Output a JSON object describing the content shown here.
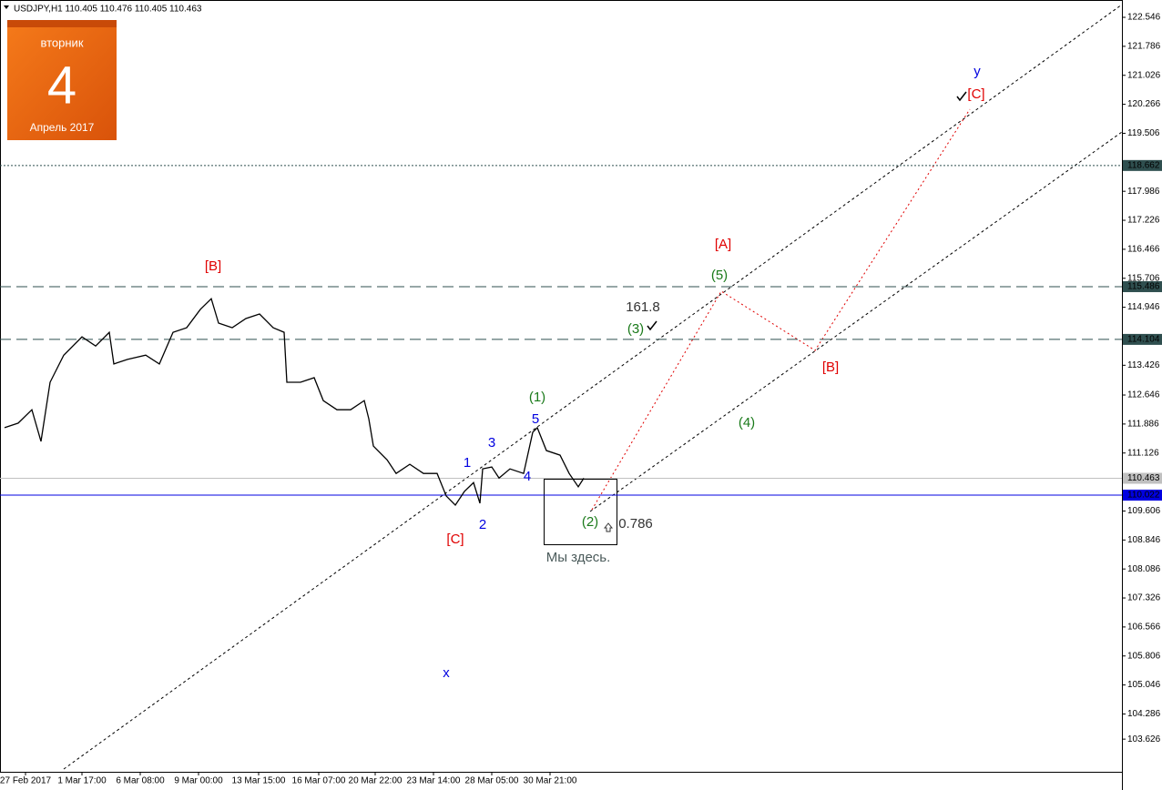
{
  "chart_data": {
    "type": "line",
    "title": "USDJPY,H1  110.405 110.476 110.405 110.463",
    "calendar": {
      "weekday": "вторник",
      "day": "4",
      "month": "Апрель 2017"
    },
    "x": [
      2.5,
      10,
      17.5,
      22.5,
      27.5,
      35,
      45,
      52.5,
      60,
      62.5,
      70,
      80,
      87.5,
      95,
      102.5,
      110,
      116,
      120,
      127.5,
      135,
      142.5,
      150,
      156,
      157.5,
      165,
      172.5,
      177.5,
      185,
      192.5,
      200,
      202.5,
      205,
      212.5,
      217.5,
      225,
      232.5,
      240,
      245,
      250,
      255,
      260,
      263.5,
      265,
      270,
      274,
      280,
      287.5,
      292.5,
      295,
      300,
      307.5,
      312.5,
      317.5,
      320.5
    ],
    "series": [
      {
        "name": "USDJPY",
        "color": "#000000",
        "values": [
          111.79,
          111.91,
          112.26,
          111.43,
          112.98,
          113.69,
          114.17,
          113.93,
          114.29,
          113.46,
          113.58,
          113.69,
          113.46,
          114.29,
          114.41,
          114.89,
          115.17,
          114.53,
          114.41,
          114.65,
          114.77,
          114.41,
          114.29,
          112.98,
          112.98,
          113.1,
          112.5,
          112.26,
          112.26,
          112.5,
          112.02,
          111.31,
          110.95,
          110.59,
          110.83,
          110.59,
          110.59,
          110.0,
          109.76,
          110.12,
          110.35,
          109.81,
          110.71,
          110.76,
          110.47,
          110.71,
          110.59,
          111.67,
          111.79,
          111.19,
          111.07,
          110.59,
          110.24,
          110.463
        ]
      }
    ],
    "xlim": [
      0,
      616
    ],
    "xticks": [
      {
        "value": 14,
        "label": "27 Feb 2017"
      },
      {
        "value": 45,
        "label": "1 Mar 17:00"
      },
      {
        "value": 77,
        "label": "6 Mar 08:00"
      },
      {
        "value": 109,
        "label": "9 Mar 00:00"
      },
      {
        "value": 142,
        "label": "13 Mar 15:00"
      },
      {
        "value": 175,
        "label": "16 Mar 07:00"
      },
      {
        "value": 206,
        "label": "20 Mar 22:00"
      },
      {
        "value": 238,
        "label": "23 Mar 14:00"
      },
      {
        "value": 270,
        "label": "28 Mar 05:00"
      },
      {
        "value": 302,
        "label": "30 Mar 21:00"
      }
    ],
    "ylim": [
      102.77,
      123.0
    ],
    "yticks": [
      122.546,
      121.786,
      121.026,
      120.266,
      119.506,
      117.986,
      117.226,
      116.466,
      115.706,
      114.946,
      113.426,
      112.646,
      111.886,
      111.126,
      109.606,
      108.846,
      108.086,
      107.326,
      106.566,
      105.806,
      105.046,
      104.286,
      103.626
    ],
    "levels": [
      {
        "value": 118.662,
        "color": "#2f4f4f",
        "style": "dotted"
      },
      {
        "value": 115.486,
        "color": "#2f4f4f",
        "style": "dashed"
      },
      {
        "value": 114.104,
        "color": "#2f4f4f",
        "style": "dashed"
      },
      {
        "value": 110.463,
        "color": "#c0c0c0",
        "style": "solid"
      },
      {
        "value": 110.022,
        "color": "#0000e0",
        "style": "solid"
      }
    ],
    "annotations": [
      {
        "text": "[B]",
        "color": "#e00000"
      },
      {
        "text": "[C]",
        "color": "#e00000"
      },
      {
        "text": "1",
        "color": "#0000e0"
      },
      {
        "text": "2",
        "color": "#0000e0"
      },
      {
        "text": "3",
        "color": "#0000e0"
      },
      {
        "text": "4",
        "color": "#0000e0"
      },
      {
        "text": "5",
        "color": "#0000e0"
      },
      {
        "text": "(1)",
        "color": "#1a7a1a"
      },
      {
        "text": "(2)",
        "color": "#1a7a1a"
      },
      {
        "text": "0.786",
        "color": "#333333"
      },
      {
        "text": "Мы здесь.",
        "color": "#4a5a5a"
      },
      {
        "text": "161.8",
        "color": "#333333"
      },
      {
        "text": "(3)",
        "color": "#1a7a1a"
      },
      {
        "text": "[A]",
        "color": "#e00000"
      },
      {
        "text": "(5)",
        "color": "#1a7a1a"
      },
      {
        "text": "(4)",
        "color": "#1a7a1a"
      },
      {
        "text": "[B]",
        "color": "#e00000"
      },
      {
        "text": "y",
        "color": "#0000e0"
      },
      {
        "text": "[C]",
        "color": "#e00000"
      },
      {
        "text": "x",
        "color": "#0000e0"
      }
    ]
  }
}
